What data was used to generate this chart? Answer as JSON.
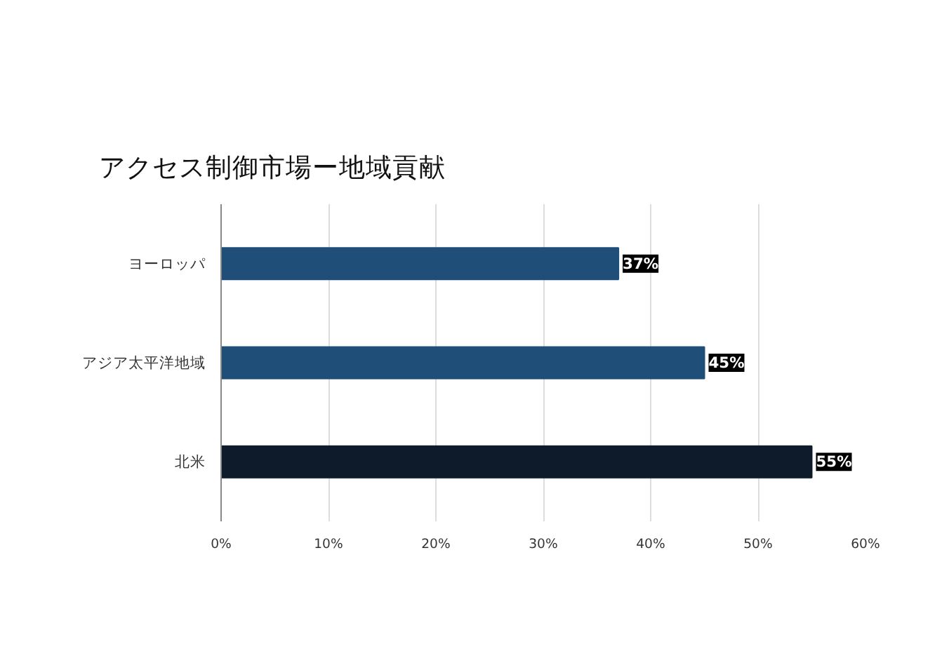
{
  "chart_data": {
    "type": "bar",
    "orientation": "horizontal",
    "title": "アクセス制御市場ー地域貢献",
    "categories": [
      "ヨーロッパ",
      "アジア太平洋地域",
      "北米"
    ],
    "values": [
      37,
      45,
      55
    ],
    "colors": [
      "#1f4e79",
      "#1f4e79",
      "#0d1b2a"
    ],
    "xlim": [
      0,
      60
    ],
    "xticks": [
      {
        "value": 0,
        "label": "0%"
      },
      {
        "value": 10,
        "label": "10%"
      },
      {
        "value": 20,
        "label": "20%"
      },
      {
        "value": 30,
        "label": "30%"
      },
      {
        "value": 40,
        "label": "40%"
      },
      {
        "value": 50,
        "label": "50%"
      },
      {
        "value": 60,
        "label": "60%"
      }
    ],
    "value_labels": [
      "37%",
      "45%",
      "55%"
    ],
    "grid": "x"
  }
}
